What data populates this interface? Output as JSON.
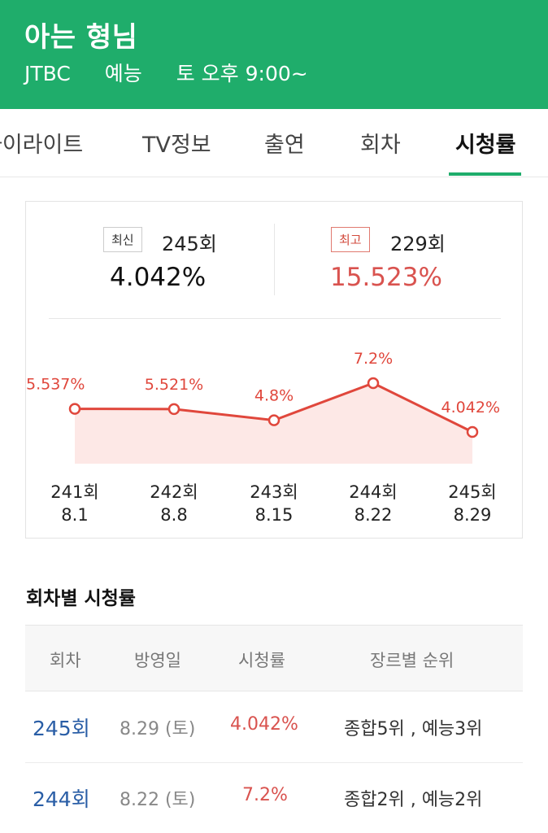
{
  "header": {
    "title": "아는 형님",
    "channel": "JTBC",
    "genre": "예능",
    "schedule": "토 오후 9:00~",
    "bg_color": "#1fad6b"
  },
  "tabs": [
    {
      "label": "하이라이트",
      "active": false
    },
    {
      "label": "TV정보",
      "active": false
    },
    {
      "label": "출연",
      "active": false
    },
    {
      "label": "회차",
      "active": false
    },
    {
      "label": "시청률",
      "active": true
    }
  ],
  "summary": {
    "latest": {
      "badge": "최신",
      "episode": "245회",
      "rating": "4.042%"
    },
    "best": {
      "badge": "최고",
      "episode": "229회",
      "rating": "15.523%"
    }
  },
  "chart_data": {
    "type": "area",
    "categories": [
      "241회 8.1",
      "242회 8.8",
      "243회 8.15",
      "244회 8.22",
      "245회 8.29"
    ],
    "episodes": [
      "241회",
      "242회",
      "243회",
      "244회",
      "245회"
    ],
    "dates": [
      "8.1",
      "8.8",
      "8.15",
      "8.22",
      "8.29"
    ],
    "values": [
      5.537,
      5.521,
      4.8,
      7.2,
      4.042
    ],
    "labels": [
      "5.537%",
      "5.521%",
      "4.8%",
      "7.2%",
      "4.042%"
    ],
    "color": "#e0473c",
    "fill_color": "#fde8e6"
  },
  "table": {
    "title": "회차별 시청률",
    "headers": [
      "회차",
      "방영일",
      "시청률",
      "장르별 순위"
    ],
    "rows": [
      {
        "episode": "245회",
        "date": "8.29 (토)",
        "rating": "4.042%",
        "rank": "종합5위 , 예능3위"
      },
      {
        "episode": "244회",
        "date": "8.22 (토)",
        "rating": "7.2%",
        "rank": "종합2위 , 예능2위"
      }
    ]
  }
}
